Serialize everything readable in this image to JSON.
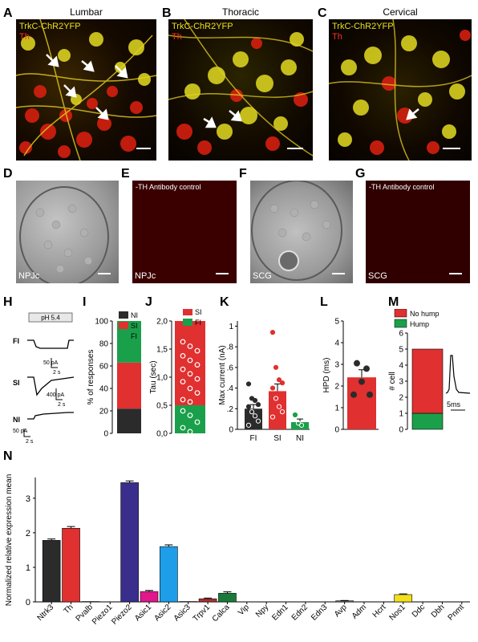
{
  "panels": {
    "A": {
      "letter": "A",
      "title": "Lumbar",
      "label1": "TrkC-ChR2YFP",
      "label2": "Th"
    },
    "B": {
      "letter": "B",
      "title": "Thoracic",
      "label1": "TrkC-ChR2YFP",
      "label2": "Th"
    },
    "C": {
      "letter": "C",
      "title": "Cervical",
      "label1": "TrkC-ChR2YFP",
      "label2": "Th"
    },
    "D": {
      "letter": "D",
      "corner": "NPJc"
    },
    "E": {
      "letter": "E",
      "top": "-TH Antibody control",
      "corner": "NPJc"
    },
    "F": {
      "letter": "F",
      "corner": "SCG"
    },
    "G": {
      "letter": "G",
      "top": "-TH Antibody control",
      "corner": "SCG"
    },
    "H": {
      "letter": "H",
      "ph": "pH 5.4",
      "rows": [
        "FI",
        "SI",
        "NI"
      ],
      "scales": [
        {
          "i": "50 pA",
          "t": "2 s"
        },
        {
          "i": "400 pA",
          "t": "2 s"
        },
        {
          "i": "50 pA",
          "t": "2 s"
        }
      ]
    },
    "I": {
      "letter": "I"
    },
    "J": {
      "letter": "J"
    },
    "K": {
      "letter": "K"
    },
    "L": {
      "letter": "L"
    },
    "M": {
      "letter": "M",
      "scale": "5ms"
    },
    "N": {
      "letter": "N"
    }
  },
  "colors": {
    "ni": "#2b2b2b",
    "si": "#e03030",
    "fi": "#1aa04a"
  },
  "chart_data": [
    {
      "panel": "I",
      "type": "bar",
      "stacked": true,
      "ylabel": "% of responses",
      "ylim": [
        0,
        100
      ],
      "yticks": [
        0,
        20,
        40,
        60,
        80,
        100
      ],
      "series": [
        {
          "name": "NI",
          "values": [
            22
          ]
        },
        {
          "name": "SI",
          "values": [
            41
          ]
        },
        {
          "name": "FI",
          "values": [
            37
          ]
        }
      ]
    },
    {
      "panel": "J",
      "type": "bar",
      "stacked": true,
      "ylabel": "Tau (sec)",
      "ylim": [
        0,
        2.0
      ],
      "yticks": [
        "0,0",
        "0,5",
        "1,0",
        "1,5",
        "2,0"
      ],
      "series": [
        {
          "name": "FI",
          "values": [
            0.5
          ]
        },
        {
          "name": "SI",
          "values": [
            1.5
          ]
        }
      ],
      "points": {
        "SI": [
          1.63,
          1.55,
          1.47,
          1.38,
          1.3,
          1.22,
          1.14,
          1.06,
          0.97,
          0.92,
          0.8,
          0.72,
          0.6,
          0.56
        ],
        "FI": [
          0.4,
          0.32,
          0.2,
          0.1,
          0.03
        ]
      }
    },
    {
      "panel": "K",
      "type": "bar",
      "ylabel": "Max current (nA)",
      "ylim": [
        0,
        1.05
      ],
      "yticks": [
        {
          "v": 0,
          "t": "0"
        },
        {
          "v": 0.2,
          "t": ".2"
        },
        {
          "v": 0.4,
          "t": ".4"
        },
        {
          "v": 0.6,
          "t": ".6"
        },
        {
          "v": 0.8,
          "t": ".8"
        },
        {
          "v": 1.0,
          "t": "1"
        }
      ],
      "categories": [
        "FI",
        "SI",
        "NI"
      ],
      "values": [
        0.2,
        0.37,
        0.07
      ],
      "errors": [
        0.04,
        0.07,
        0.03
      ],
      "points": [
        [
          0.44,
          0.3,
          0.28,
          0.24,
          0.22,
          0.17,
          0.13,
          0.08,
          0.04
        ],
        [
          0.94,
          0.6,
          0.48,
          0.45,
          0.4,
          0.3,
          0.22,
          0.17,
          0.12
        ],
        [
          0.14,
          0.06,
          0.04
        ]
      ]
    },
    {
      "panel": "L",
      "type": "bar",
      "ylabel": "HPD (ms)",
      "ylim": [
        0,
        5
      ],
      "yticks": [
        0,
        1,
        2,
        3,
        4,
        5
      ],
      "values": [
        2.4
      ],
      "errors": [
        0.35
      ],
      "points": [
        3.05,
        2.8,
        2.2,
        1.6,
        1.6
      ]
    },
    {
      "panel": "M",
      "type": "bar",
      "stacked": true,
      "ylabel": "# cell",
      "ylim": [
        0,
        6
      ],
      "yticks": [
        0,
        1,
        2,
        3,
        4,
        5,
        6
      ],
      "series": [
        {
          "name": "Hump",
          "values": [
            1
          ]
        },
        {
          "name": "No hump",
          "values": [
            4
          ]
        }
      ]
    },
    {
      "panel": "N",
      "type": "bar",
      "ylabel": "Normalized relative expression mean",
      "ylim": [
        0,
        3.6
      ],
      "yticks": [
        0,
        1,
        2,
        3
      ],
      "categories": [
        "Ntrk3",
        "Th",
        "Pvalb",
        "Piezo1",
        "Piezo2",
        "Asic1",
        "Asic2",
        "Asic3",
        "Trpv1",
        "Calca",
        "Vip",
        "Npy",
        "Edn1",
        "Edn2",
        "Edn3",
        "Avp",
        "Adm",
        "Hcrt",
        "Nos1",
        "Ddc",
        "Dbh",
        "Pnmt"
      ],
      "values": [
        1.78,
        2.13,
        0.01,
        0,
        3.45,
        0.3,
        1.6,
        0.01,
        0.09,
        0.25,
        0,
        0,
        0,
        0,
        0,
        0.03,
        0,
        0,
        0.21,
        0,
        0,
        0
      ],
      "errors": [
        0.04,
        0.05,
        0,
        0,
        0.05,
        0.03,
        0.05,
        0,
        0.02,
        0.04,
        0,
        0,
        0,
        0,
        0,
        0.01,
        0,
        0,
        0.02,
        0,
        0,
        0
      ],
      "bar_colors": [
        "#2b2b2b",
        "#e03030",
        "#777777",
        "#777777",
        "#3a2e8c",
        "#e0188c",
        "#1e9ee8",
        "#777777",
        "#b03030",
        "#1a7a3a",
        "#777777",
        "#777777",
        "#777777",
        "#777777",
        "#777777",
        "#777777",
        "#777777",
        "#777777",
        "#f2e01a",
        "#777777",
        "#777777",
        "#777777"
      ]
    }
  ]
}
